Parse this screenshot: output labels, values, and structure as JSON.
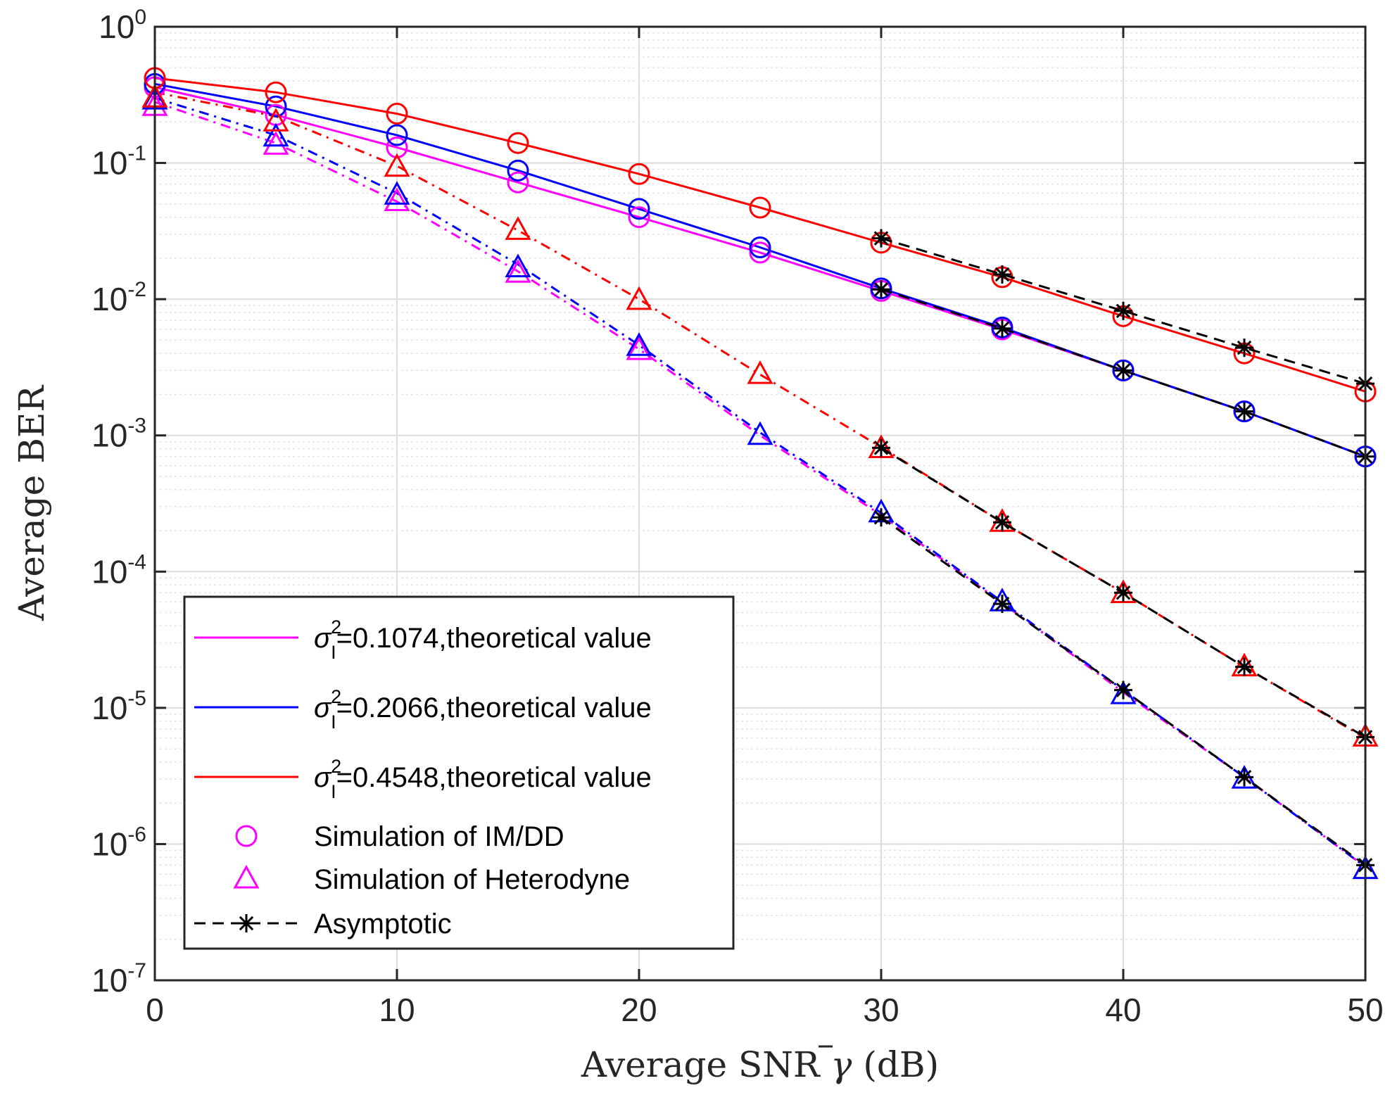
{
  "chart_data": {
    "type": "line",
    "yscale": "log",
    "xlabel": "Average SNR γ̄ (dB)",
    "xlabel_parts": {
      "pre": "Average SNR ",
      "sym": "γ",
      "post": " (dB)"
    },
    "ylabel": "Average BER",
    "xlim": [
      0,
      50
    ],
    "ylim": [
      1e-07,
      1
    ],
    "grid": true,
    "x_ticks": [
      0,
      10,
      20,
      30,
      40,
      50
    ],
    "x_tick_labels": [
      "0",
      "10",
      "20",
      "30",
      "40",
      "50"
    ],
    "y_ticks": [
      0,
      -1,
      -2,
      -3,
      -4,
      -5,
      -6,
      -7
    ],
    "y_tick_base": "10",
    "y_tick_exponents": [
      "0",
      "-1",
      "-2",
      "-3",
      "-4",
      "-5",
      "-6",
      "-7"
    ],
    "colors": {
      "magenta": "#ff00ff",
      "blue": "#0000ff",
      "red": "#ff0000",
      "black": "#000000"
    },
    "series": [
      {
        "name": "σ_I^2=0.1074, IM/DD theoretical",
        "color": "magenta",
        "style": "solid",
        "x": [
          0,
          5,
          10,
          15,
          20,
          25,
          30,
          35,
          40,
          45,
          50
        ],
        "y": [
          0.36,
          0.225,
          0.13,
          0.072,
          0.04,
          0.022,
          0.0115,
          0.006,
          0.003,
          0.0015,
          0.0007
        ]
      },
      {
        "name": "σ_I^2=0.2066, IM/DD theoretical",
        "color": "blue",
        "style": "solid",
        "x": [
          0,
          5,
          10,
          15,
          20,
          25,
          30,
          35,
          40,
          45,
          50
        ],
        "y": [
          0.38,
          0.26,
          0.16,
          0.088,
          0.046,
          0.024,
          0.012,
          0.0062,
          0.003,
          0.0015,
          0.0007
        ]
      },
      {
        "name": "σ_I^2=0.4548, IM/DD theoretical",
        "color": "red",
        "style": "solid",
        "x": [
          0,
          5,
          10,
          15,
          20,
          25,
          30,
          35,
          40,
          45,
          50
        ],
        "y": [
          0.42,
          0.33,
          0.23,
          0.14,
          0.083,
          0.047,
          0.026,
          0.0145,
          0.0075,
          0.004,
          0.0021
        ]
      },
      {
        "name": "σ_I^2=0.1074, Heterodyne theoretical",
        "color": "magenta",
        "style": "dashdot",
        "x": [
          0,
          5,
          10,
          15,
          20,
          25,
          30,
          35,
          40,
          45,
          50
        ],
        "y": [
          0.28,
          0.14,
          0.052,
          0.016,
          0.0043,
          0.001,
          0.00026,
          5.9e-05,
          1.3e-05,
          3.1e-06,
          6.8e-07
        ]
      },
      {
        "name": "σ_I^2=0.2066, Heterodyne theoretical",
        "color": "blue",
        "style": "dashdot",
        "x": [
          0,
          5,
          10,
          15,
          20,
          25,
          30,
          35,
          40,
          45,
          50
        ],
        "y": [
          0.3,
          0.16,
          0.06,
          0.018,
          0.0046,
          0.00105,
          0.00027,
          6e-05,
          1.35e-05,
          3.1e-06,
          6.8e-07
        ]
      },
      {
        "name": "σ_I^2=0.4548, Heterodyne theoretical",
        "color": "red",
        "style": "dashdot",
        "x": [
          0,
          5,
          10,
          15,
          20,
          25,
          30,
          35,
          40,
          45,
          50
        ],
        "y": [
          0.33,
          0.22,
          0.095,
          0.032,
          0.01,
          0.0028,
          0.00082,
          0.00023,
          7e-05,
          2e-05,
          6e-06
        ]
      },
      {
        "name": "Simulation IM/DD σ_I^2=0.1074",
        "color": "magenta",
        "marker": "circle",
        "x": [
          0,
          5,
          10,
          15,
          20,
          25,
          30,
          35,
          40,
          45,
          50
        ],
        "y": [
          0.36,
          0.225,
          0.13,
          0.072,
          0.04,
          0.022,
          0.0115,
          0.006,
          0.003,
          0.0015,
          0.0007
        ]
      },
      {
        "name": "Simulation IM/DD σ_I^2=0.2066",
        "color": "blue",
        "marker": "circle",
        "x": [
          0,
          5,
          10,
          15,
          20,
          25,
          30,
          35,
          40,
          45,
          50
        ],
        "y": [
          0.38,
          0.26,
          0.16,
          0.088,
          0.046,
          0.024,
          0.012,
          0.0062,
          0.003,
          0.0015,
          0.0007
        ]
      },
      {
        "name": "Simulation IM/DD σ_I^2=0.4548",
        "color": "red",
        "marker": "circle",
        "x": [
          0,
          5,
          10,
          15,
          20,
          25,
          30,
          35,
          40,
          45,
          50
        ],
        "y": [
          0.42,
          0.33,
          0.23,
          0.14,
          0.083,
          0.047,
          0.026,
          0.0145,
          0.0075,
          0.004,
          0.0021
        ]
      },
      {
        "name": "Simulation Heterodyne σ_I^2=0.1074",
        "color": "magenta",
        "marker": "triangle",
        "x": [
          0,
          5,
          10,
          15,
          20
        ],
        "y": [
          0.26,
          0.135,
          0.052,
          0.0155,
          0.0042
        ]
      },
      {
        "name": "Simulation Heterodyne σ_I^2=0.2066",
        "color": "blue",
        "marker": "triangle",
        "x": [
          0,
          5,
          10,
          15,
          20,
          25,
          30,
          35,
          40,
          45,
          50
        ],
        "y": [
          0.29,
          0.155,
          0.058,
          0.017,
          0.0045,
          0.001,
          0.00027,
          6e-05,
          1.25e-05,
          3e-06,
          6.5e-07
        ]
      },
      {
        "name": "Simulation Heterodyne σ_I^2=0.4548",
        "color": "red",
        "marker": "triangle",
        "x": [
          0,
          5,
          10,
          15,
          20,
          25,
          30,
          35,
          40,
          45,
          50
        ],
        "y": [
          0.3,
          0.2,
          0.093,
          0.032,
          0.0098,
          0.0028,
          0.0008,
          0.00023,
          6.9e-05,
          2e-05,
          6.1e-06
        ]
      },
      {
        "name": "Asymptotic IM/DD σ_I^2=0.4548",
        "color": "black",
        "style": "dashed",
        "marker": "asterisk",
        "x": [
          30,
          35,
          40,
          45,
          50
        ],
        "y": [
          0.028,
          0.0152,
          0.0082,
          0.0044,
          0.0024
        ]
      },
      {
        "name": "Asymptotic IM/DD σ_I^2=0.1074/0.2066",
        "color": "black",
        "style": "dashed",
        "marker": "asterisk",
        "x": [
          30,
          35,
          40,
          45,
          50
        ],
        "y": [
          0.0118,
          0.0061,
          0.003,
          0.0015,
          0.0007
        ]
      },
      {
        "name": "Asymptotic Heterodyne σ_I^2=0.4548",
        "color": "black",
        "style": "dashed",
        "marker": "asterisk",
        "x": [
          30,
          35,
          40,
          45,
          50
        ],
        "y": [
          0.00081,
          0.00023,
          7e-05,
          2e-05,
          6.1e-06
        ]
      },
      {
        "name": "Asymptotic Heterodyne σ_I^2=0.1074/0.2066",
        "color": "black",
        "style": "dashed",
        "marker": "asterisk",
        "x": [
          30,
          35,
          40,
          45,
          50
        ],
        "y": [
          0.00025,
          5.8e-05,
          1.35e-05,
          3.1e-06,
          7e-07
        ]
      }
    ],
    "legend": {
      "position": "bottom-left",
      "entries": [
        {
          "kind": "sigma",
          "color": "magenta",
          "sample": "line",
          "text": "=0.1074,theoretical value"
        },
        {
          "kind": "sigma",
          "color": "blue",
          "sample": "line",
          "text": "=0.2066,theoretical value"
        },
        {
          "kind": "sigma",
          "color": "red",
          "sample": "line",
          "text": "=0.4548,theoretical value"
        },
        {
          "kind": "plain",
          "color": "magenta",
          "sample": "circle",
          "text": "Simulation of IM/DD"
        },
        {
          "kind": "plain",
          "color": "magenta",
          "sample": "triangle",
          "text": "Simulation of Heterodyne"
        },
        {
          "kind": "plain",
          "color": "black",
          "sample": "dashed-asterisk",
          "text": "Asymptotic"
        }
      ],
      "sigma_symbol": "σ",
      "sigma_sup": "2",
      "sigma_sub": "I"
    }
  }
}
